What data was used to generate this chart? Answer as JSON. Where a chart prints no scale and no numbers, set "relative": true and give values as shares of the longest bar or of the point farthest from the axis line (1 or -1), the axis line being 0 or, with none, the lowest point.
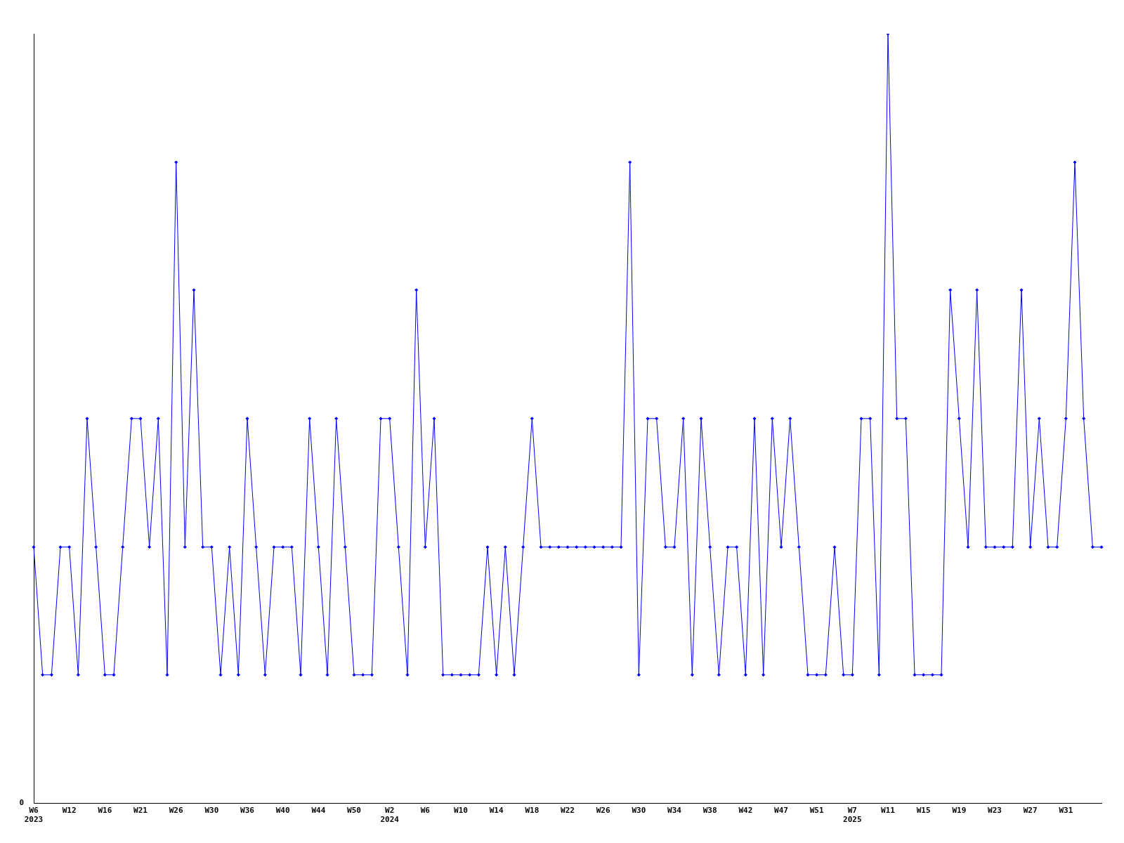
{
  "chart_data": {
    "type": "line",
    "relative": true,
    "color": "#0000ff",
    "marker": "diamond",
    "line_style": "solid",
    "grid": false,
    "legend": false,
    "categories": [
      "W6\n2023",
      null,
      null,
      null,
      "W12",
      null,
      null,
      null,
      "W16",
      null,
      null,
      null,
      "W21",
      null,
      null,
      null,
      "W26",
      null,
      null,
      null,
      "W30",
      null,
      null,
      null,
      "W36",
      null,
      null,
      null,
      "W40",
      null,
      null,
      null,
      "W44",
      null,
      null,
      null,
      "W50",
      null,
      null,
      null,
      "W2\n2024",
      null,
      null,
      null,
      "W6",
      null,
      null,
      null,
      "W10",
      null,
      null,
      null,
      "W14",
      null,
      null,
      null,
      "W18",
      null,
      null,
      null,
      "W22",
      null,
      null,
      null,
      "W26",
      null,
      null,
      null,
      "W30",
      null,
      null,
      null,
      "W34",
      null,
      null,
      null,
      "W38",
      null,
      null,
      null,
      "W42",
      null,
      null,
      null,
      "W47",
      null,
      null,
      null,
      "W51",
      null,
      null,
      null,
      "W7\n2025",
      null,
      null,
      null,
      "W11",
      null,
      null,
      null,
      "W15",
      null,
      null,
      null,
      "W19",
      null,
      null,
      null,
      "W23",
      null,
      null,
      null,
      "W27",
      null,
      null,
      null,
      "W31",
      null,
      null,
      null,
      null
    ],
    "values": [
      0.333,
      0.167,
      0.167,
      0.333,
      0.333,
      0.167,
      0.5,
      0.333,
      0.167,
      0.167,
      0.333,
      0.5,
      0.5,
      0.333,
      0.5,
      0.167,
      0.833,
      0.333,
      0.667,
      0.333,
      0.333,
      0.167,
      0.333,
      0.167,
      0.5,
      0.333,
      0.167,
      0.333,
      0.333,
      0.333,
      0.167,
      0.5,
      0.333,
      0.167,
      0.5,
      0.333,
      0.167,
      0.167,
      0.167,
      0.5,
      0.5,
      0.333,
      0.167,
      0.667,
      0.333,
      0.5,
      0.167,
      0.167,
      0.167,
      0.167,
      0.167,
      0.333,
      0.167,
      0.333,
      0.167,
      0.333,
      0.5,
      0.333,
      0.333,
      0.333,
      0.333,
      0.333,
      0.333,
      0.333,
      0.333,
      0.333,
      0.333,
      0.833,
      0.167,
      0.5,
      0.5,
      0.333,
      0.333,
      0.5,
      0.167,
      0.5,
      0.333,
      0.167,
      0.333,
      0.333,
      0.167,
      0.5,
      0.167,
      0.5,
      0.333,
      0.5,
      0.333,
      0.167,
      0.167,
      0.167,
      0.333,
      0.167,
      0.167,
      0.5,
      0.5,
      0.167,
      1,
      0.5,
      0.5,
      0.167,
      0.167,
      0.167,
      0.167,
      0.667,
      0.5,
      0.333,
      0.667,
      0.333,
      0.333,
      0.333,
      0.333,
      0.667,
      0.333,
      0.5,
      0.333,
      0.333,
      0.5,
      0.833,
      0.5,
      0.333,
      0.333
    ],
    "annotations": [
      "0"
    ]
  }
}
